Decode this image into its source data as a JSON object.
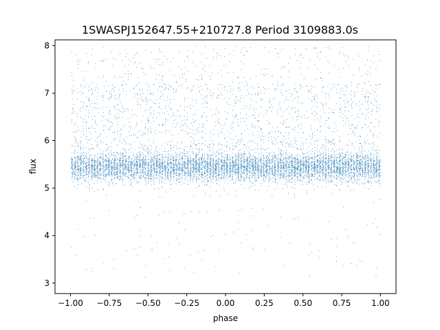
{
  "chart_data": {
    "type": "scatter",
    "title": "1SWASPJ152647.55+210727.8 Period 3109883.0s",
    "xlabel": "phase",
    "ylabel": "flux",
    "xlim": [
      -1.1,
      1.1
    ],
    "ylim": [
      2.78,
      8.12
    ],
    "x_ticks": [
      "−1.00",
      "−0.75",
      "−0.50",
      "−0.25",
      "0.00",
      "0.25",
      "0.50",
      "0.75",
      "1.00"
    ],
    "y_ticks": [
      "3",
      "4",
      "5",
      "6",
      "7",
      "8"
    ],
    "grid": false,
    "point_color": "#1f77b4",
    "series": [
      {
        "description": "folded light curve, phase -1 to 1 (two cycles), dense core band",
        "core_flux_mean": 5.45,
        "core_flux_spread": 0.16,
        "outlier_flux_range": [
          3.1,
          8.0
        ],
        "x_range": [
          -1.0,
          1.0
        ]
      }
    ]
  }
}
